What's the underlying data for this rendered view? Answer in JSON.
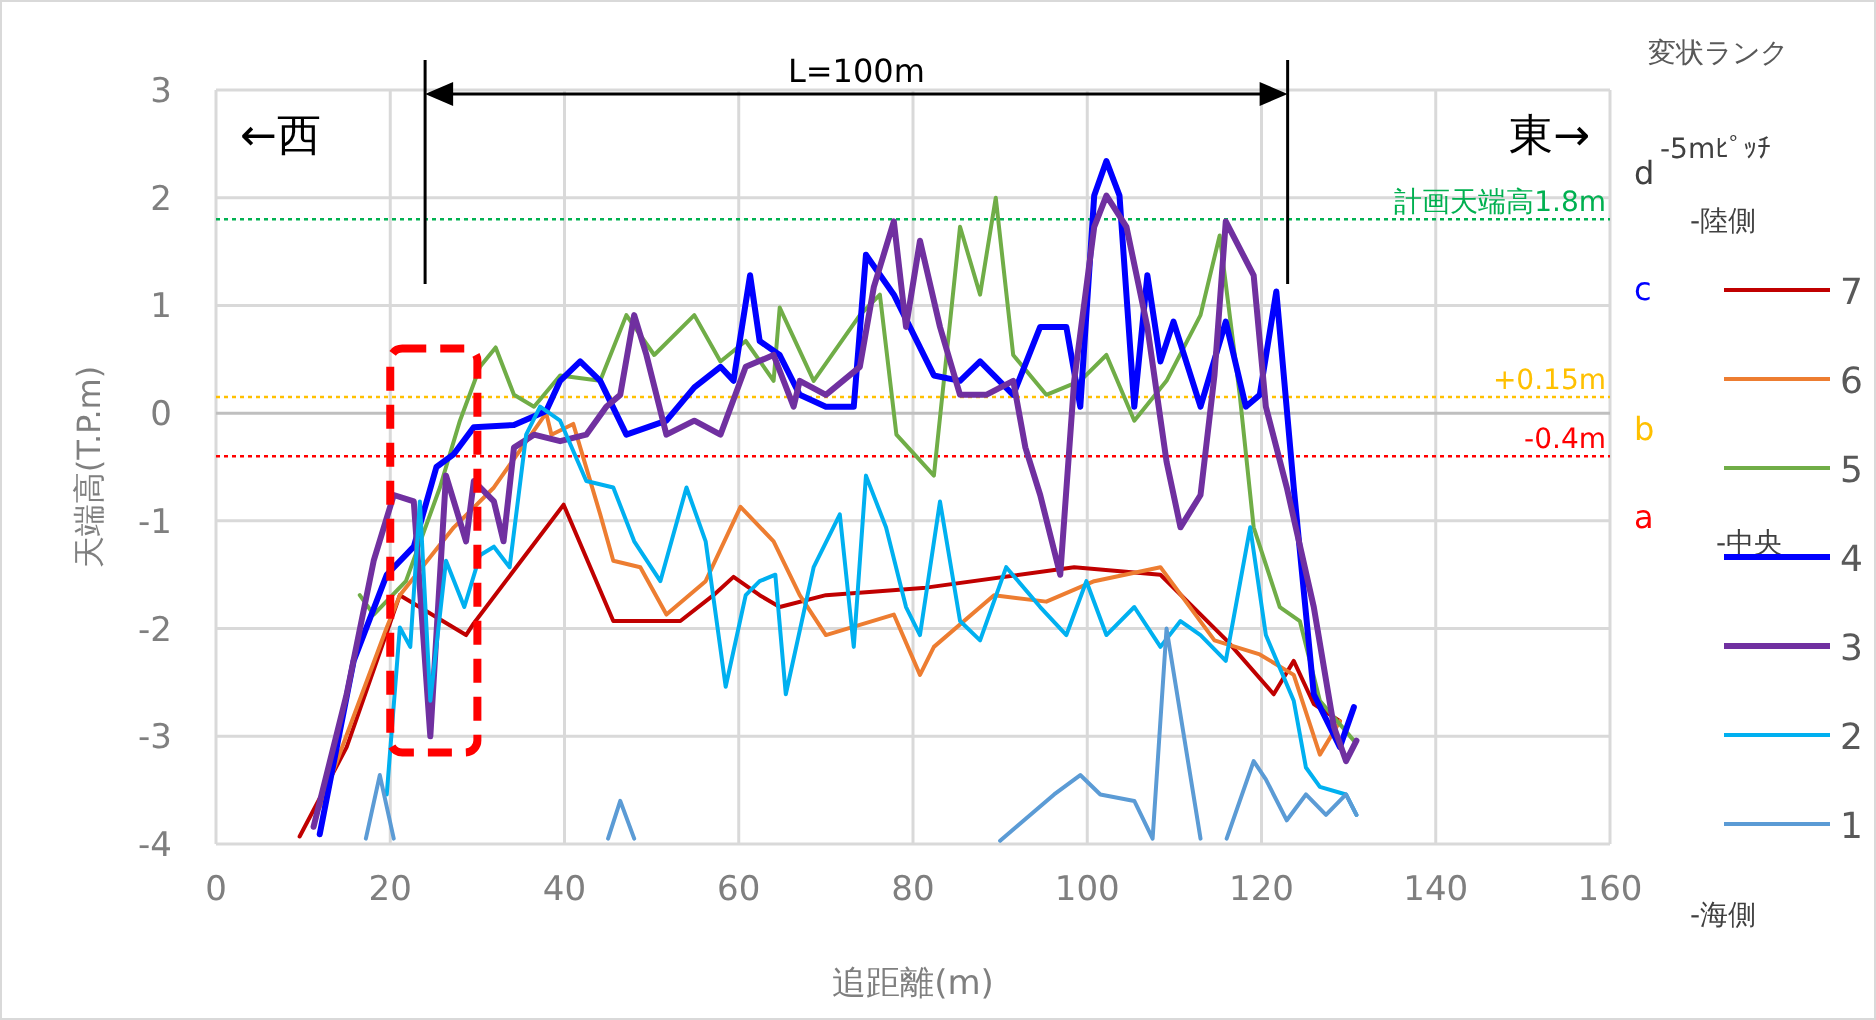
{
  "chart_data": {
    "type": "line",
    "xlabel": "追距離(m)",
    "ylabel": "天端高(T.P.m)",
    "legend_title": "変状ランク",
    "xlim": [
      0,
      160
    ],
    "xticks": [
      0,
      20,
      40,
      60,
      80,
      100,
      120,
      140,
      160
    ],
    "ylim": [
      -4,
      3
    ],
    "yticks": [
      -4,
      -3,
      -2,
      -1,
      0,
      1,
      2,
      3
    ],
    "grid": true,
    "legend": "right",
    "ref_lines": [
      {
        "axis": "y",
        "value": 1.8,
        "label": "計画天端高1.8m",
        "color": "#00b050",
        "line_style": "dotted"
      },
      {
        "axis": "y",
        "value": 0.15,
        "label": "+0.15m",
        "color": "#ffc000",
        "line_style": "dotted"
      },
      {
        "axis": "y",
        "value": -0.4,
        "label": "-0.4m",
        "color": "#ff0000",
        "line_style": "dotted"
      },
      {
        "axis": "x",
        "value": 24,
        "color": "#000000",
        "line_style": "solid"
      },
      {
        "axis": "x",
        "value": 123,
        "color": "#000000",
        "line_style": "solid"
      }
    ],
    "annotations": [
      "L=100m",
      "←西",
      "東→",
      "-5mﾋﾟｯﾁ",
      "-陸側",
      "-中央",
      "-海側",
      "d",
      "c",
      "b",
      "a"
    ],
    "series": [
      {
        "name": "7",
        "color": "#c00000",
        "x": [
          9.6,
          15,
          21.1,
          28.7,
          29.6,
          39.9,
          45.6,
          53.3,
          57.1,
          59.4,
          62.4,
          64.7,
          70,
          81.5,
          98.5,
          108.4,
          116,
          121.4,
          123.7,
          126,
          129
        ],
        "values": [
          -3.93,
          -3.1,
          -1.69,
          -2.06,
          -1.95,
          -0.85,
          -1.93,
          -1.93,
          -1.69,
          -1.52,
          -1.69,
          -1.8,
          -1.69,
          -1.62,
          -1.43,
          -1.5,
          -2.11,
          -2.61,
          -2.3,
          -2.7,
          -2.86
        ]
      },
      {
        "name": "6",
        "color": "#ed7d31",
        "x": [
          11.9,
          19.6,
          21.1,
          27.3,
          31.9,
          37.9,
          38.5,
          41,
          44.1,
          45.6,
          48.7,
          51.7,
          56.2,
          60.2,
          64,
          67,
          70,
          77.8,
          80.8,
          82.4,
          89.3,
          95.3,
          100.8,
          108.4,
          114.6,
          119.8,
          123.7,
          126.7,
          129
        ],
        "values": [
          -3.66,
          -1.99,
          -1.69,
          -1.06,
          -0.69,
          0,
          -0.2,
          -0.1,
          -0.94,
          -1.37,
          -1.43,
          -1.87,
          -1.56,
          -0.87,
          -1.19,
          -1.69,
          -2.06,
          -1.87,
          -2.43,
          -2.17,
          -1.69,
          -1.75,
          -1.56,
          -1.43,
          -2.11,
          -2.24,
          -2.43,
          -3.17,
          -2.86
        ]
      },
      {
        "name": "5",
        "color": "#70ad47",
        "x": [
          16.5,
          18.1,
          21.8,
          25.7,
          28,
          30.3,
          32.1,
          34.2,
          36.5,
          39.5,
          44.1,
          47.1,
          50.3,
          54.9,
          57.9,
          60.8,
          64,
          64.7,
          68.6,
          73.9,
          76.2,
          78.1,
          82.4,
          85.4,
          87.7,
          89.5,
          91.5,
          95.3,
          99.2,
          102.2,
          105.4,
          109.1,
          113,
          115.2,
          117.5,
          119.1,
          122.1,
          124.4,
          126.7,
          130.6
        ],
        "values": [
          -1.69,
          -1.87,
          -1.56,
          -0.69,
          -0.07,
          0.43,
          0.61,
          0.17,
          0.06,
          0.35,
          0.3,
          0.91,
          0.54,
          0.91,
          0.48,
          0.67,
          0.3,
          0.98,
          0.3,
          0.91,
          1.1,
          -0.2,
          -0.58,
          1.73,
          1.1,
          2.0,
          0.54,
          0.17,
          0.3,
          0.54,
          -0.07,
          0.3,
          0.91,
          1.65,
          0.17,
          -1.06,
          -1.8,
          -1.93,
          -2.67,
          -3.04
        ]
      },
      {
        "name": "4",
        "color": "#0000ff",
        "x": [
          11.9,
          15.8,
          19.6,
          22.7,
          25.3,
          27.3,
          29.6,
          34.2,
          37.9,
          39.5,
          41.8,
          44.1,
          47.1,
          51.7,
          54.9,
          57.9,
          59.4,
          61.3,
          62.4,
          64.7,
          67,
          70,
          73.2,
          74.6,
          77.8,
          82.4,
          85.4,
          87.7,
          91.5,
          94.6,
          97.6,
          99.2,
          100.8,
          102.2,
          103.7,
          105.4,
          106.9,
          108.4,
          109.9,
          113,
          115.9,
          118.2,
          119.8,
          121.7,
          123.7,
          126,
          129,
          130.6
        ],
        "values": [
          -3.91,
          -2.3,
          -1.5,
          -1.24,
          -0.5,
          -0.38,
          -0.13,
          -0.11,
          0.02,
          0.3,
          0.48,
          0.3,
          -0.2,
          -0.07,
          0.24,
          0.43,
          0.3,
          1.28,
          0.67,
          0.54,
          0.17,
          0.06,
          0.06,
          1.47,
          1.1,
          0.35,
          0.3,
          0.48,
          0.17,
          0.8,
          0.8,
          0.06,
          2.02,
          2.34,
          2.02,
          0.06,
          1.28,
          0.48,
          0.85,
          0.06,
          0.85,
          0.06,
          0.17,
          1.13,
          -0.69,
          -2.61,
          -3.1,
          -2.73
        ]
      },
      {
        "name": "3",
        "color": "#7030a0",
        "x": [
          11.2,
          15,
          18.1,
          20.4,
          22.7,
          24.6,
          26.4,
          28.7,
          29.6,
          31.9,
          33,
          34.2,
          36.5,
          39.5,
          42.5,
          44.8,
          46.4,
          48,
          49.4,
          51.7,
          54.9,
          57.9,
          60.8,
          64,
          66.3,
          67,
          70,
          73.9,
          75.5,
          77.8,
          79.2,
          80.8,
          83.1,
          85.4,
          88.4,
          91.5,
          92.9,
          94.6,
          96.9,
          98.5,
          100.8,
          102.2,
          104.5,
          106.9,
          109.1,
          110.7,
          113,
          114.6,
          115.9,
          119.1,
          120.5,
          122.9,
          126,
          128.3,
          129.7,
          130.9
        ],
        "values": [
          -3.84,
          -2.61,
          -1.37,
          -0.76,
          -0.82,
          -3.0,
          -0.58,
          -1.19,
          -0.63,
          -0.82,
          -1.19,
          -0.32,
          -0.2,
          -0.26,
          -0.2,
          0.06,
          0.17,
          0.91,
          0.54,
          -0.2,
          -0.07,
          -0.2,
          0.43,
          0.54,
          0.06,
          0.3,
          0.17,
          0.43,
          1.17,
          1.78,
          0.8,
          1.6,
          0.8,
          0.17,
          0.17,
          0.3,
          -0.32,
          -0.76,
          -1.5,
          0.3,
          1.73,
          2.02,
          1.73,
          0.8,
          -0.45,
          -1.06,
          -0.76,
          0.35,
          1.78,
          1.28,
          0.06,
          -0.69,
          -1.8,
          -2.91,
          -3.23,
          -3.04
        ]
      },
      {
        "name": "2",
        "color": "#00b0f0",
        "x": [
          19.6,
          21.1,
          22.3,
          23.4,
          24.6,
          26.4,
          28.5,
          30.3,
          31.9,
          33.7,
          35.6,
          37.2,
          39.5,
          42.5,
          45.6,
          48,
          51,
          54,
          56.2,
          58.5,
          60.8,
          62.4,
          64.2,
          65.4,
          68.6,
          71.6,
          73.2,
          74.6,
          76.9,
          79.2,
          80.8,
          83.1,
          85.4,
          87.7,
          90.7,
          94.6,
          97.6,
          99.9,
          102.2,
          105.4,
          108.4,
          110.7,
          113,
          115.9,
          118.7,
          120.5,
          123.7,
          125.1,
          126.7,
          129.7,
          130.9
        ],
        "values": [
          -3.54,
          -1.99,
          -2.17,
          -0.82,
          -2.67,
          -1.37,
          -1.8,
          -1.32,
          -1.24,
          -1.43,
          -0.2,
          0.06,
          -0.07,
          -0.63,
          -0.69,
          -1.19,
          -1.56,
          -0.69,
          -1.19,
          -2.54,
          -1.69,
          -1.56,
          -1.5,
          -2.61,
          -1.43,
          -0.94,
          -2.17,
          -0.58,
          -1.06,
          -1.8,
          -2.06,
          -0.82,
          -1.93,
          -2.11,
          -1.43,
          -1.8,
          -2.06,
          -1.56,
          -2.06,
          -1.8,
          -2.17,
          -1.93,
          -2.06,
          -2.3,
          -1.06,
          -2.06,
          -2.67,
          -3.29,
          -3.47,
          -3.54,
          -3.73
        ]
      },
      {
        "name": "1",
        "color": "#5b9bd5",
        "x": [
          17.2,
          18.8,
          20.4,
          null,
          45,
          46.4,
          48,
          null,
          90,
          96.2,
          99.2,
          101.5,
          105.4,
          107.5,
          109.1,
          113,
          null,
          116,
          119.1,
          120.5,
          122.9,
          125.1,
          127.4,
          129.7,
          130.9
        ],
        "values": [
          -3.95,
          -3.36,
          -3.95,
          null,
          -3.95,
          -3.6,
          -3.95,
          null,
          -3.97,
          -3.54,
          -3.36,
          -3.54,
          -3.6,
          -3.95,
          -2.0,
          -3.95,
          null,
          -3.95,
          -3.23,
          -3.4,
          -3.78,
          -3.54,
          -3.73,
          -3.54,
          -3.73
        ]
      }
    ]
  }
}
